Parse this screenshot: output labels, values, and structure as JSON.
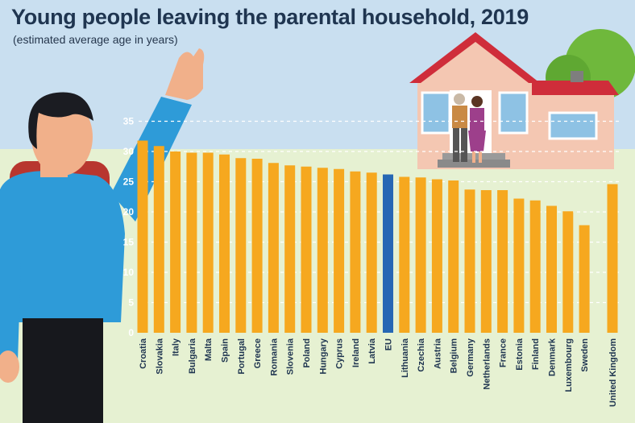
{
  "header": {
    "title": "Young people leaving the parental household, 2019",
    "subtitle": "(estimated average age in years)"
  },
  "colors": {
    "sky": "#c9dff0",
    "grass": "#e6f1d2",
    "bar": "#f6a81f",
    "highlight": "#2667b4",
    "text": "#1f3550"
  },
  "icons": [
    "person-waving-illustration",
    "house-illustration",
    "family-illustration",
    "tree-illustration"
  ],
  "chart_data": {
    "type": "bar",
    "title": "Young people leaving the parental household, 2019",
    "subtitle": "(estimated average age in years)",
    "xlabel": "",
    "ylabel": "",
    "ylim": [
      0,
      35
    ],
    "yticks": [
      0,
      5,
      10,
      15,
      20,
      25,
      30,
      35
    ],
    "grid": "dashed horizontal",
    "highlight_category": "EU",
    "categories": [
      "Croatia",
      "Slovakia",
      "Italy",
      "Bulgaria",
      "Malta",
      "Spain",
      "Portugal",
      "Greece",
      "Romania",
      "Slovenia",
      "Poland",
      "Hungary",
      "Cyprus",
      "Ireland",
      "Latvia",
      "EU",
      "Lithuania",
      "Czechia",
      "Austria",
      "Belgium",
      "Germany",
      "Netherlands",
      "France",
      "Estonia",
      "Finland",
      "Denmark",
      "Luxembourg",
      "Sweden",
      "United Kingdom"
    ],
    "values": [
      31.8,
      30.9,
      30.0,
      29.8,
      29.8,
      29.5,
      28.9,
      28.8,
      28.1,
      27.7,
      27.5,
      27.3,
      27.1,
      26.7,
      26.5,
      26.2,
      25.8,
      25.7,
      25.4,
      25.2,
      23.7,
      23.6,
      23.6,
      22.2,
      21.9,
      21.0,
      20.1,
      17.8,
      24.6
    ]
  }
}
